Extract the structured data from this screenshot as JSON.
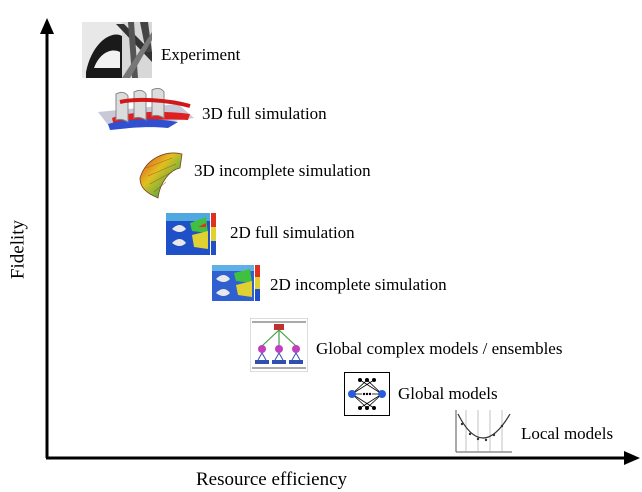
{
  "axes": {
    "x_label": "Resource efficiency",
    "y_label": "Fidelity"
  },
  "levels": [
    {
      "label": "Experiment",
      "thumbnail": "experiment-photo"
    },
    {
      "label": "3D full simulation",
      "thumbnail": "3d-blade-cascade-render"
    },
    {
      "label": "3D incomplete simulation",
      "thumbnail": "3d-blade-surface-render"
    },
    {
      "label": "2D full simulation",
      "thumbnail": "2d-flow-contour"
    },
    {
      "label": "2D incomplete simulation",
      "thumbnail": "2d-flow-contour-partial"
    },
    {
      "label": "Global complex models / ensembles",
      "thumbnail": "ensemble-tree-diagram"
    },
    {
      "label": "Global models",
      "thumbnail": "neural-network-diagram"
    },
    {
      "label": "Local models",
      "thumbnail": "local-regression-plot"
    }
  ]
}
